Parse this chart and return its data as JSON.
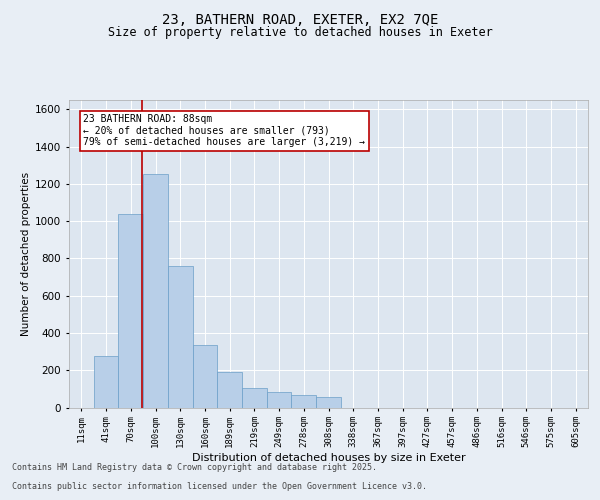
{
  "title_line1": "23, BATHERN ROAD, EXETER, EX2 7QE",
  "title_line2": "Size of property relative to detached houses in Exeter",
  "xlabel": "Distribution of detached houses by size in Exeter",
  "ylabel": "Number of detached properties",
  "categories": [
    "11sqm",
    "41sqm",
    "70sqm",
    "100sqm",
    "130sqm",
    "160sqm",
    "189sqm",
    "219sqm",
    "249sqm",
    "278sqm",
    "308sqm",
    "338sqm",
    "367sqm",
    "397sqm",
    "427sqm",
    "457sqm",
    "486sqm",
    "516sqm",
    "546sqm",
    "575sqm",
    "605sqm"
  ],
  "values": [
    0,
    275,
    1040,
    1255,
    760,
    335,
    190,
    105,
    85,
    65,
    55,
    0,
    0,
    0,
    0,
    0,
    0,
    0,
    0,
    0,
    0
  ],
  "bar_color": "#b8cfe8",
  "bar_edge_color": "#6a9fc8",
  "background_color": "#dde6f0",
  "fig_background_color": "#e8eef5",
  "vline_x": 2.47,
  "vline_color": "#bb0000",
  "annotation_text": "23 BATHERN ROAD: 88sqm\n← 20% of detached houses are smaller (793)\n79% of semi-detached houses are larger (3,219) →",
  "annotation_box_color": "#ffffff",
  "annotation_box_edge_color": "#bb0000",
  "ylim": [
    0,
    1650
  ],
  "yticks": [
    0,
    200,
    400,
    600,
    800,
    1000,
    1200,
    1400,
    1600
  ],
  "footer_line1": "Contains HM Land Registry data © Crown copyright and database right 2025.",
  "footer_line2": "Contains public sector information licensed under the Open Government Licence v3.0."
}
